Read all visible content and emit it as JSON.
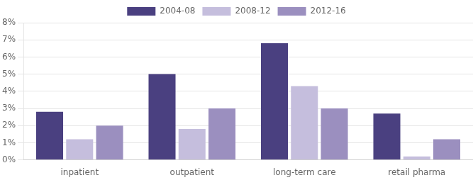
{
  "chart_data": {
    "type": "bar",
    "categories": [
      "inpatient",
      "outpatient",
      "long-term care",
      "retail pharma"
    ],
    "series": [
      {
        "name": "2004-08",
        "color": "#4a4080",
        "values": [
          2.8,
          5.0,
          6.8,
          2.7
        ]
      },
      {
        "name": "2008-12",
        "color": "#c5bedd",
        "values": [
          1.2,
          1.8,
          4.3,
          0.2
        ]
      },
      {
        "name": "2012-16",
        "color": "#9b8fbf",
        "values": [
          2.0,
          3.0,
          3.0,
          1.2
        ]
      }
    ],
    "ylim": [
      0,
      8
    ],
    "yticks": [
      {
        "value": 0,
        "label": "0%"
      },
      {
        "value": 1,
        "label": "1%"
      },
      {
        "value": 2,
        "label": "2%"
      },
      {
        "value": 3,
        "label": "3%"
      },
      {
        "value": 4,
        "label": "4%"
      },
      {
        "value": 5,
        "label": "5%"
      },
      {
        "value": 6,
        "label": "6%"
      },
      {
        "value": 7,
        "label": "7%"
      },
      {
        "value": 8,
        "label": "8%"
      }
    ],
    "grid": true,
    "legend": "top"
  }
}
